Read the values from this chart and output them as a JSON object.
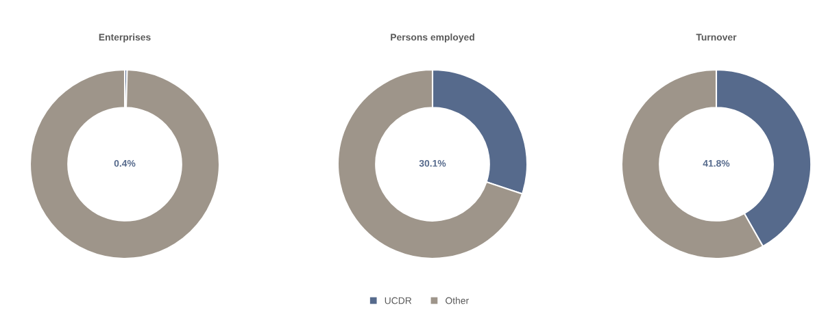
{
  "chart_data": [
    {
      "type": "donut",
      "title": "Enterprises",
      "categories": [
        "UCDR",
        "Other"
      ],
      "values": [
        0.4,
        99.6
      ],
      "colors": [
        "#566a8c",
        "#9e958a"
      ],
      "value_labels": [
        "0.4%",
        null
      ],
      "legend": "bottom"
    },
    {
      "type": "donut",
      "title": "Persons employed",
      "categories": [
        null,
        null
      ],
      "values": [
        30.1,
        69.9
      ],
      "colors": [
        "#566a8c",
        "#9e958a"
      ],
      "value_labels": [
        "30.1%",
        null
      ]
    },
    {
      "type": "donut",
      "title": "Turnover",
      "categories": [
        null,
        null
      ],
      "values": [
        41.8,
        58.2
      ],
      "colors": [
        "#566a8c",
        "#9e958a"
      ],
      "value_labels": [
        "41.8%",
        null
      ]
    }
  ]
}
